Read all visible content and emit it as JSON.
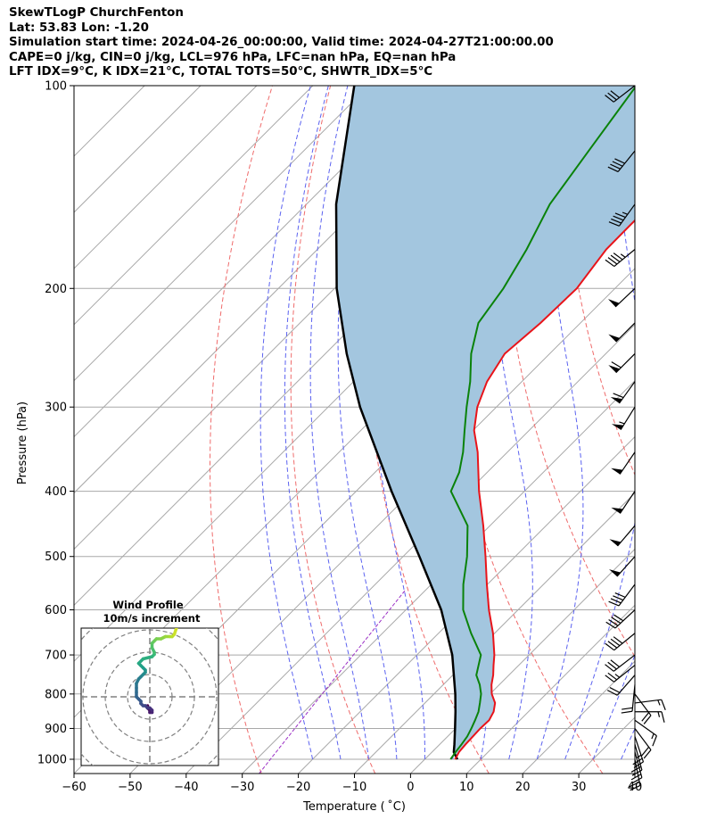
{
  "header": {
    "line1": "SkewTLogP ChurchFenton",
    "line2": "Lat: 53.83   Lon: -1.20",
    "line3": "Simulation start time: 2024-04-26_00:00:00, Valid time: 2024-04-27T21:00:00.00",
    "line4": "CAPE=0 j/kg, CIN=0 j/kg, LCL=976 hPa, LFC=nan hPa, EQ=nan hPa",
    "line5": "LFT IDX=9°C, K IDX=21°C, TOTAL TOTS=50°C, SHWTR_IDX=5°C"
  },
  "chart_data": [
    {
      "type": "skew-t",
      "title": "SkewTLogP ChurchFenton",
      "xlabel": "Temperature ($^\\circ$C)",
      "ylabel": "Pressure (hPa)",
      "xlim": [
        -60,
        40
      ],
      "ylim": [
        1050,
        100
      ],
      "y_scale": "log",
      "x_ticks": [
        -60,
        -50,
        -40,
        -30,
        -20,
        -10,
        0,
        10,
        20,
        30,
        40
      ],
      "x_tick_labels": [
        "−60",
        "−50",
        "−40",
        "−30",
        "−20",
        "−10",
        "0",
        "10",
        "20",
        "30",
        "40"
      ],
      "y_ticks": [
        1000,
        900,
        800,
        700,
        600,
        500,
        400,
        300,
        200,
        100
      ],
      "y_tick_labels": [
        "1000",
        "900",
        "800",
        "700",
        "600",
        "500",
        "400",
        "300",
        "200",
        "100"
      ],
      "grid": true,
      "colors": {
        "temperature": "#e8141a",
        "dewpoint": "#0a820a",
        "parcel": "#000000",
        "shade": "#a3c6df",
        "dry_adiabat": "#ef6b6b",
        "moist_adiabat": "#5b62f0",
        "mixing_ratio": "#9a2fc4",
        "isotherm": "#a8a8a8"
      },
      "temperature": {
        "p": [
          1000,
          975,
          950,
          925,
          900,
          875,
          850,
          825,
          800,
          775,
          750,
          725,
          700,
          650,
          600,
          550,
          500,
          450,
          400,
          350,
          325,
          300,
          275,
          250,
          225,
          200,
          175,
          150,
          125,
          100
        ],
        "t": [
          5.4,
          4.8,
          4.6,
          4.5,
          4.4,
          4.5,
          3.8,
          2.5,
          0.3,
          -1.4,
          -2.8,
          -4.5,
          -6.2,
          -10.3,
          -15.2,
          -20.1,
          -25.3,
          -31.2,
          -38.1,
          -45.3,
          -49.8,
          -53.4,
          -56.2,
          -58.0,
          -57.1,
          -56.8,
          -58.5,
          -58.6,
          -58.3,
          -58.5
        ]
      },
      "dewpoint": {
        "p": [
          1000,
          975,
          950,
          925,
          900,
          875,
          850,
          825,
          800,
          775,
          750,
          700,
          650,
          600,
          550,
          500,
          450,
          400,
          375,
          350,
          325,
          300,
          275,
          250,
          225,
          200,
          175,
          150,
          125,
          100
        ],
        "td": [
          4.6,
          4.2,
          3.9,
          3.5,
          2.8,
          2.0,
          1.1,
          -0.2,
          -1.6,
          -3.5,
          -5.8,
          -8.6,
          -14.2,
          -19.8,
          -24.3,
          -28.6,
          -34.0,
          -43.1,
          -45.0,
          -47.9,
          -51.5,
          -55.3,
          -59.2,
          -64.0,
          -68.2,
          -69.9,
          -72.7,
          -76.6,
          -79.2,
          -82.3
        ]
      },
      "parcel": {
        "p": [
          1000,
          976,
          950,
          900,
          850,
          800,
          700,
          600,
          500,
          400,
          300,
          250,
          200,
          150,
          100
        ],
        "t": [
          5.8,
          3.9,
          2.6,
          -0.1,
          -3.0,
          -6.2,
          -13.7,
          -23.7,
          -37.1,
          -53.7,
          -74.3,
          -86.2,
          -99.6,
          -114.7,
          -132.6
        ]
      },
      "wind_barbs": {
        "p": [
          1000,
          975,
          950,
          925,
          900,
          875,
          850,
          825,
          800,
          775,
          750,
          725,
          700,
          650,
          600,
          550,
          500,
          450,
          400,
          350,
          300,
          275,
          250,
          225,
          200,
          175,
          150,
          125,
          100
        ],
        "u": [
          -2,
          -3,
          -3,
          -4,
          -6,
          -7,
          -7,
          -8,
          -6,
          1,
          7,
          10,
          13,
          16,
          15,
          12,
          17,
          17,
          14,
          15,
          15,
          18,
          21,
          18,
          18,
          17,
          13,
          13,
          13
        ],
        "v": [
          10,
          11,
          11,
          12,
          8,
          5,
          0,
          -1,
          8,
          10,
          8,
          8,
          10,
          13,
          14,
          16,
          19,
          20,
          21,
          22,
          24,
          25,
          21,
          18,
          17,
          14,
          18,
          16,
          10
        ],
        "units": "m/s"
      }
    },
    {
      "type": "hodograph",
      "title": "Wind Profile",
      "subtitle": "10m/s increment",
      "ring_speeds": [
        10,
        20,
        30,
        40,
        50
      ],
      "colormap": "viridis",
      "u": [
        -1,
        -1,
        0,
        0,
        1,
        1,
        0,
        -1,
        -2,
        -3,
        -4,
        -4,
        -5,
        -6,
        -6,
        -6,
        -6,
        -5,
        -4,
        -3,
        -2,
        -2,
        -3,
        -4,
        -5,
        -3,
        1,
        2,
        2,
        1,
        1,
        2,
        3,
        5,
        7,
        9,
        10,
        11,
        12,
        13,
        14,
        15
      ],
      "v": [
        -4,
        -5,
        -6,
        -7,
        -7,
        -6,
        -5,
        -5,
        -4,
        -4,
        -3,
        -2,
        -1,
        0,
        2,
        4,
        6,
        8,
        9,
        10,
        11,
        12,
        13,
        14,
        15,
        17,
        18,
        19,
        20,
        22,
        24,
        25,
        26,
        26,
        27,
        27,
        27,
        28,
        31,
        34,
        37,
        40
      ]
    }
  ]
}
